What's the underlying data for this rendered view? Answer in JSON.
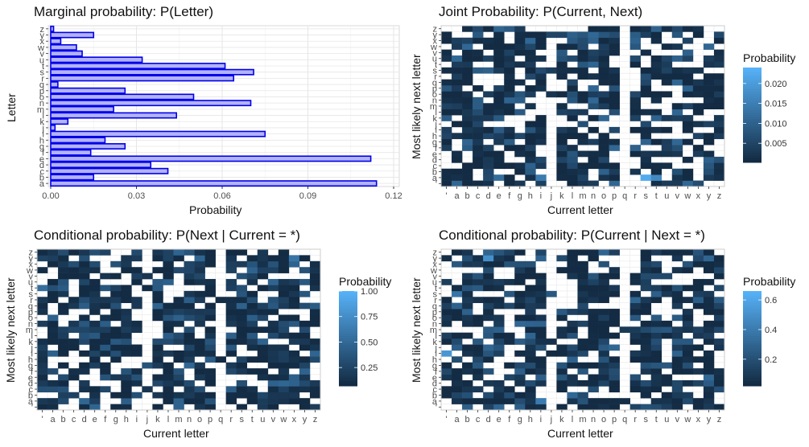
{
  "chart_data": [
    {
      "id": "marginal",
      "type": "bar",
      "orientation": "horizontal",
      "title": "Marginal probability: P(Letter)",
      "xlabel": "Probability",
      "ylabel": "Letter",
      "categories": [
        "a",
        "b",
        "c",
        "d",
        "e",
        "f",
        "g",
        "h",
        "i",
        "j",
        "k",
        "l",
        "m",
        "n",
        "o",
        "p",
        "q",
        "r",
        "s",
        "t",
        "u",
        "v",
        "w",
        "x",
        "y",
        "z"
      ],
      "values": [
        0.114,
        0.015,
        0.041,
        0.035,
        0.112,
        0.014,
        0.026,
        0.019,
        0.075,
        0.0015,
        0.006,
        0.044,
        0.022,
        0.07,
        0.05,
        0.026,
        0.0025,
        0.064,
        0.071,
        0.061,
        0.032,
        0.011,
        0.009,
        0.0035,
        0.015,
        0.001
      ],
      "xlim": [
        0,
        0.12
      ],
      "xticks": [
        "0.00",
        "0.03",
        "0.06",
        "0.09",
        "0.12"
      ],
      "bar_fill": "#b3b3ff",
      "bar_stroke": "#0000e6",
      "grid": true
    },
    {
      "id": "joint",
      "type": "heatmap",
      "title": "Joint Probability: P(Current, Next)",
      "xlabel": "Current letter",
      "ylabel": "Most likely next letter",
      "legend_title": "Probability",
      "legend_ticks": [
        "0.005",
        "0.010",
        "0.015",
        "0.020"
      ],
      "legend_values": [
        0.005,
        0.01,
        0.015,
        0.02
      ],
      "scale": [
        0.0002,
        0.024
      ],
      "low_color": "#132b43",
      "high_color": "#56b1f7"
    },
    {
      "id": "cond_next",
      "type": "heatmap",
      "title": "Conditional probability: P(Next | Current = *)",
      "xlabel": "Current letter",
      "ylabel": "Most likely next letter",
      "legend_title": "Probability",
      "legend_ticks": [
        "0.25",
        "0.50",
        "0.75",
        "1.00"
      ],
      "legend_values": [
        0.25,
        0.5,
        0.75,
        1.0
      ],
      "scale": [
        0.07,
        1.0
      ],
      "low_color": "#132b43",
      "high_color": "#56b1f7"
    },
    {
      "id": "cond_current",
      "type": "heatmap",
      "title": "Conditional probability: P(Current | Next = *)",
      "xlabel": "Current letter",
      "ylabel": "Most likely next letter",
      "legend_title": "Probability",
      "legend_ticks": [
        "0.2",
        "0.4",
        "0.6"
      ],
      "legend_values": [
        0.2,
        0.4,
        0.6
      ],
      "scale": [
        0.02,
        0.66
      ],
      "low_color": "#132b43",
      "high_color": "#56b1f7"
    }
  ],
  "heatmap_axis": {
    "x_categories": [
      "'",
      "a",
      "b",
      "c",
      "d",
      "e",
      "f",
      "g",
      "h",
      "i",
      "j",
      "k",
      "l",
      "m",
      "n",
      "o",
      "p",
      "q",
      "r",
      "s",
      "t",
      "u",
      "v",
      "w",
      "x",
      "y",
      "z"
    ],
    "y_categories": [
      "'",
      "a",
      "b",
      "c",
      "d",
      "e",
      "f",
      "g",
      "h",
      "i",
      "j",
      "k",
      "l",
      "m",
      "n",
      "o",
      "p",
      "q",
      "r",
      "s",
      "t",
      "u",
      "v",
      "w",
      "x",
      "y",
      "z"
    ]
  }
}
